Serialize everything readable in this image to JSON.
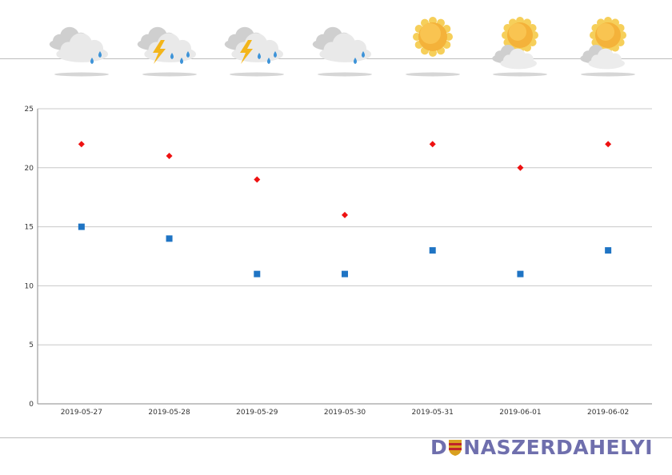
{
  "weather_icons": [
    {
      "date": "2019-05-27",
      "icon": "cloud-rain-icon"
    },
    {
      "date": "2019-05-28",
      "icon": "thunderstorm-icon"
    },
    {
      "date": "2019-05-29",
      "icon": "thunderstorm-icon"
    },
    {
      "date": "2019-05-30",
      "icon": "cloud-rain-icon"
    },
    {
      "date": "2019-05-31",
      "icon": "sun-icon"
    },
    {
      "date": "2019-06-01",
      "icon": "sun-cloud-icon"
    },
    {
      "date": "2019-06-02",
      "icon": "sun-cloud-icon"
    }
  ],
  "chart_data": {
    "type": "scatter",
    "categories": [
      "2019-05-27",
      "2019-05-28",
      "2019-05-29",
      "2019-05-30",
      "2019-05-31",
      "2019-06-01",
      "2019-06-02"
    ],
    "series": [
      {
        "marker": "diamond",
        "color": "#ee1111",
        "values": [
          22,
          21,
          19,
          16,
          22,
          20,
          22
        ]
      },
      {
        "marker": "square",
        "color": "#1f74c4",
        "values": [
          15,
          14,
          11,
          11,
          13,
          11,
          13
        ]
      }
    ],
    "ylim": [
      0,
      25
    ],
    "yticks": [
      0,
      5,
      10,
      15,
      20,
      25
    ],
    "grid": true,
    "legend": "none"
  },
  "logo": {
    "part1": "D",
    "part2": "NASZERDAHELYI"
  }
}
